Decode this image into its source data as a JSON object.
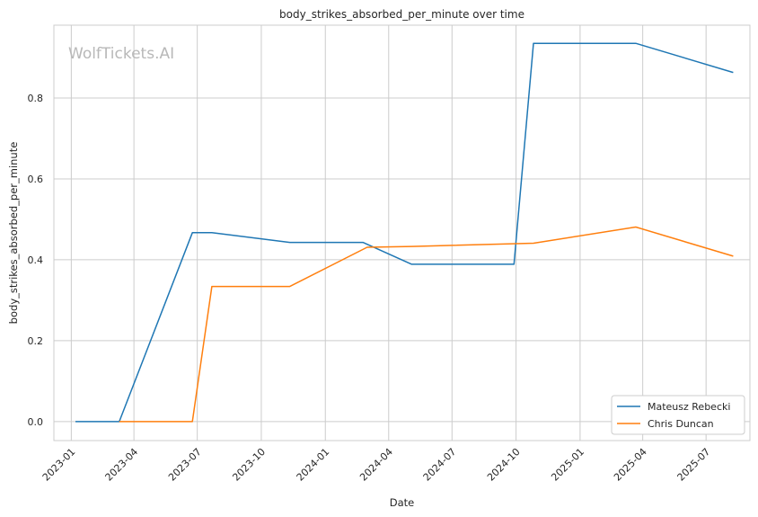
{
  "watermark": "WolfTickets.AI",
  "chart_data": {
    "type": "line",
    "title": "body_strikes_absorbed_per_minute over time",
    "xlabel": "Date",
    "ylabel": "body_strikes_absorbed_per_minute",
    "x_ticks": [
      "2023-01",
      "2023-04",
      "2023-07",
      "2023-10",
      "2024-01",
      "2024-04",
      "2024-07",
      "2024-10",
      "2025-01",
      "2025-04",
      "2025-07"
    ],
    "y_ticks": [
      0.0,
      0.2,
      0.4,
      0.6,
      0.8
    ],
    "y_tick_labels": [
      "0.0",
      "0.2",
      "0.4",
      "0.6",
      "0.8"
    ],
    "xlim": [
      "2022-12-07",
      "2025-09-02"
    ],
    "ylim": [
      -0.047,
      0.98
    ],
    "grid": true,
    "legend_position": "bottom-right",
    "series": [
      {
        "name": "Mateusz Rebecki",
        "color": "#1f77b4",
        "points": [
          {
            "x": "2023-01-07",
            "y": 0.0
          },
          {
            "x": "2023-03-11",
            "y": 0.0
          },
          {
            "x": "2023-06-24",
            "y": 0.467
          },
          {
            "x": "2023-07-22",
            "y": 0.467
          },
          {
            "x": "2023-11-11",
            "y": 0.443
          },
          {
            "x": "2024-02-24",
            "y": 0.443
          },
          {
            "x": "2024-05-04",
            "y": 0.389
          },
          {
            "x": "2024-09-28",
            "y": 0.389
          },
          {
            "x": "2024-10-26",
            "y": 0.935
          },
          {
            "x": "2025-03-22",
            "y": 0.935
          },
          {
            "x": "2025-08-09",
            "y": 0.863
          }
        ]
      },
      {
        "name": "Chris Duncan",
        "color": "#ff7f0e",
        "points": [
          {
            "x": "2023-03-11",
            "y": 0.0
          },
          {
            "x": "2023-06-24",
            "y": 0.0
          },
          {
            "x": "2023-07-22",
            "y": 0.334
          },
          {
            "x": "2023-11-11",
            "y": 0.334
          },
          {
            "x": "2024-03-01",
            "y": 0.431
          },
          {
            "x": "2024-05-04",
            "y": 0.433
          },
          {
            "x": "2024-10-26",
            "y": 0.441
          },
          {
            "x": "2025-03-22",
            "y": 0.481
          },
          {
            "x": "2025-08-09",
            "y": 0.409
          }
        ]
      }
    ]
  }
}
